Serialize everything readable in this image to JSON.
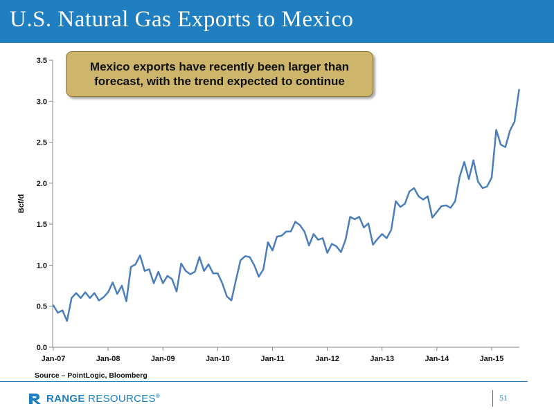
{
  "header": {
    "title": "U.S. Natural Gas Exports to Mexico"
  },
  "callout": {
    "text": "Mexico exports have recently been larger than forecast, with the trend expected to continue"
  },
  "source": "Source – PointLogic, Bloomberg",
  "footer": {
    "logo_main": "RANGE",
    "logo_rest": " RESOURCES",
    "registered": "®",
    "page_number": "51"
  },
  "colors": {
    "title_bar": "#1f7fc1",
    "line": "#4a7ebb",
    "callout_fill": "#cdb56b",
    "logo": "#1f7fc1"
  },
  "chart_data": {
    "type": "line",
    "title": "",
    "xlabel": "",
    "ylabel": "Bcf/d",
    "ylim": [
      0,
      3.5
    ],
    "yticks": [
      "0.0",
      "0.5",
      "1.0",
      "1.5",
      "2.0",
      "2.5",
      "3.0",
      "3.5"
    ],
    "xticks": [
      "Jan-07",
      "Jan-08",
      "Jan-09",
      "Jan-10",
      "Jan-11",
      "Jan-12",
      "Jan-13",
      "Jan-14",
      "Jan-15"
    ],
    "grid": false,
    "x_start": "Jan-07",
    "x_end": "Jul-15",
    "series": [
      {
        "name": "",
        "values": [
          0.51,
          0.42,
          0.45,
          0.32,
          0.6,
          0.66,
          0.6,
          0.67,
          0.6,
          0.66,
          0.57,
          0.61,
          0.67,
          0.79,
          0.65,
          0.75,
          0.56,
          0.98,
          1.01,
          1.12,
          0.93,
          0.95,
          0.78,
          0.92,
          0.78,
          0.87,
          0.83,
          0.68,
          1.02,
          0.93,
          0.89,
          0.92,
          1.1,
          0.93,
          1.01,
          0.9,
          0.9,
          0.78,
          0.62,
          0.57,
          0.82,
          1.06,
          1.11,
          1.1,
          1.0,
          0.86,
          0.95,
          1.28,
          1.18,
          1.35,
          1.36,
          1.41,
          1.41,
          1.53,
          1.49,
          1.41,
          1.24,
          1.38,
          1.31,
          1.33,
          1.15,
          1.26,
          1.23,
          1.16,
          1.31,
          1.59,
          1.56,
          1.59,
          1.46,
          1.51,
          1.25,
          1.32,
          1.38,
          1.33,
          1.43,
          1.78,
          1.71,
          1.75,
          1.9,
          1.94,
          1.84,
          1.8,
          1.84,
          1.58,
          1.65,
          1.72,
          1.73,
          1.7,
          1.78,
          2.08,
          2.26,
          2.05,
          2.28,
          2.02,
          1.94,
          1.96,
          2.07,
          2.65,
          2.47,
          2.44,
          2.64,
          2.75,
          3.14
        ]
      }
    ]
  }
}
